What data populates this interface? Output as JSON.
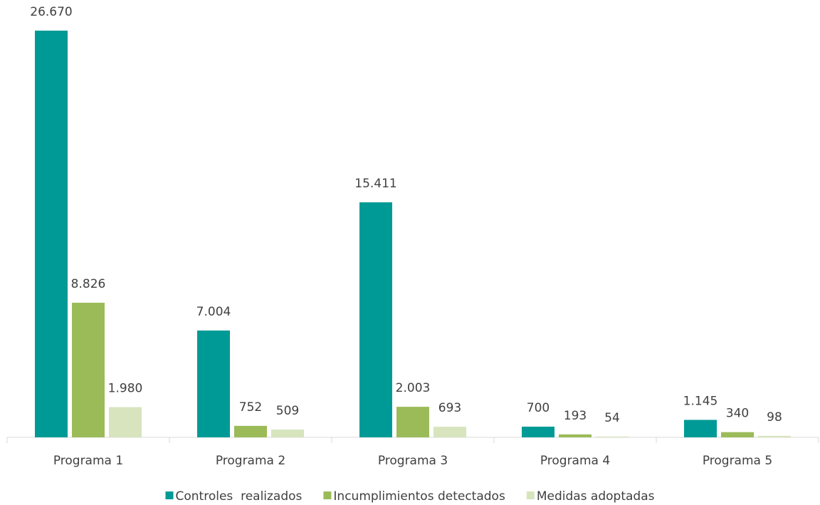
{
  "chart_data": {
    "type": "bar",
    "categories": [
      "Programa 1",
      "Programa 2",
      "Programa 3",
      "Programa 4",
      "Programa 5"
    ],
    "series": [
      {
        "name": "Controles  realizados",
        "color": "#009a96",
        "values": [
          26670,
          7004,
          15411,
          700,
          1145
        ],
        "value_labels": [
          "26.670",
          "7.004",
          "15.411",
          "700",
          "1.145"
        ]
      },
      {
        "name": "Incumplimientos detectados",
        "color": "#9bbb59",
        "values": [
          8826,
          752,
          2003,
          193,
          340
        ],
        "value_labels": [
          "8.826",
          "752",
          "2.003",
          "193",
          "340"
        ]
      },
      {
        "name": "Medidas adoptadas",
        "color": "#d7e4bd",
        "values": [
          1980,
          509,
          693,
          54,
          98
        ],
        "value_labels": [
          "1.980",
          "509",
          "693",
          "54",
          "98"
        ]
      }
    ],
    "legend": "bottom"
  }
}
